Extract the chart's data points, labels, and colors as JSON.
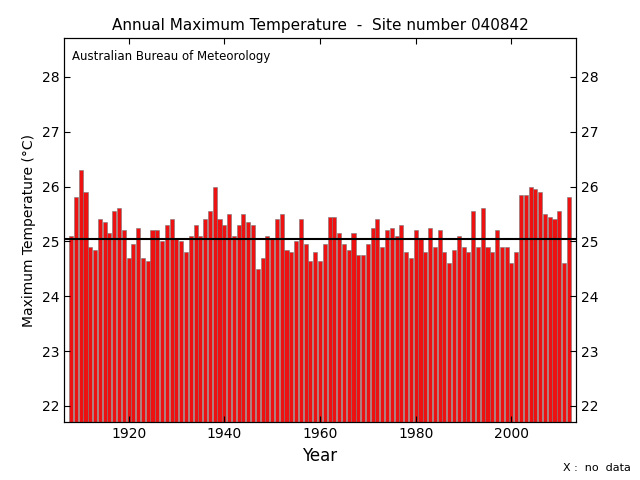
{
  "title": "Annual Maximum Temperature  -  Site number 040842",
  "ylabel": "Maximum Temperature (°C)",
  "xlabel": "Year",
  "annotation": "Australian Bureau of Meteorology",
  "footnote": "X :  no  data",
  "bar_color": "#EE1111",
  "bar_edge_color": "#777777",
  "mean_line_color": "black",
  "mean_value": 25.05,
  "ylim": [
    21.7,
    28.7
  ],
  "yticks": [
    22,
    23,
    24,
    25,
    26,
    27,
    28
  ],
  "xticks": [
    1920,
    1940,
    1960,
    1980,
    2000
  ],
  "years": [
    1908,
    1909,
    1910,
    1911,
    1912,
    1913,
    1914,
    1915,
    1916,
    1917,
    1918,
    1919,
    1920,
    1921,
    1922,
    1923,
    1924,
    1925,
    1926,
    1927,
    1928,
    1929,
    1930,
    1931,
    1932,
    1933,
    1934,
    1935,
    1936,
    1937,
    1938,
    1939,
    1940,
    1941,
    1942,
    1943,
    1944,
    1945,
    1946,
    1947,
    1948,
    1949,
    1950,
    1951,
    1952,
    1953,
    1954,
    1955,
    1956,
    1957,
    1958,
    1959,
    1960,
    1961,
    1962,
    1963,
    1964,
    1965,
    1966,
    1967,
    1968,
    1969,
    1970,
    1971,
    1972,
    1973,
    1974,
    1975,
    1976,
    1977,
    1978,
    1979,
    1980,
    1981,
    1982,
    1983,
    1984,
    1985,
    1986,
    1987,
    1988,
    1989,
    1990,
    1991,
    1992,
    1993,
    1994,
    1995,
    1996,
    1997,
    1998,
    1999,
    2000,
    2001,
    2002,
    2003,
    2004,
    2005,
    2006,
    2007,
    2008,
    2009,
    2010,
    2011,
    2012
  ],
  "values": [
    25.1,
    25.8,
    26.3,
    25.9,
    24.9,
    24.85,
    25.4,
    25.35,
    25.15,
    25.55,
    25.6,
    25.2,
    24.7,
    24.95,
    25.25,
    24.7,
    24.65,
    25.2,
    25.2,
    25.0,
    25.3,
    25.4,
    25.05,
    25.0,
    24.8,
    25.1,
    25.3,
    25.1,
    25.4,
    25.55,
    26.0,
    25.4,
    25.3,
    25.5,
    25.1,
    25.3,
    25.5,
    25.35,
    25.3,
    24.5,
    24.7,
    25.1,
    25.05,
    25.4,
    25.5,
    24.85,
    24.8,
    25.0,
    25.4,
    24.95,
    24.65,
    24.8,
    24.65,
    24.95,
    25.45,
    25.45,
    25.15,
    24.95,
    24.85,
    25.15,
    24.75,
    24.75,
    24.95,
    25.25,
    25.4,
    24.9,
    25.2,
    25.25,
    25.1,
    25.3,
    24.8,
    24.7,
    25.2,
    25.05,
    24.8,
    25.25,
    24.9,
    25.2,
    24.8,
    24.6,
    24.85,
    25.1,
    24.9,
    24.8,
    25.55,
    24.9,
    25.6,
    24.9,
    24.8,
    25.2,
    24.9,
    24.9,
    24.6,
    24.8,
    25.85,
    25.85,
    26.0,
    25.95,
    25.9,
    25.5,
    25.45,
    25.4,
    25.55,
    24.6,
    25.8
  ]
}
